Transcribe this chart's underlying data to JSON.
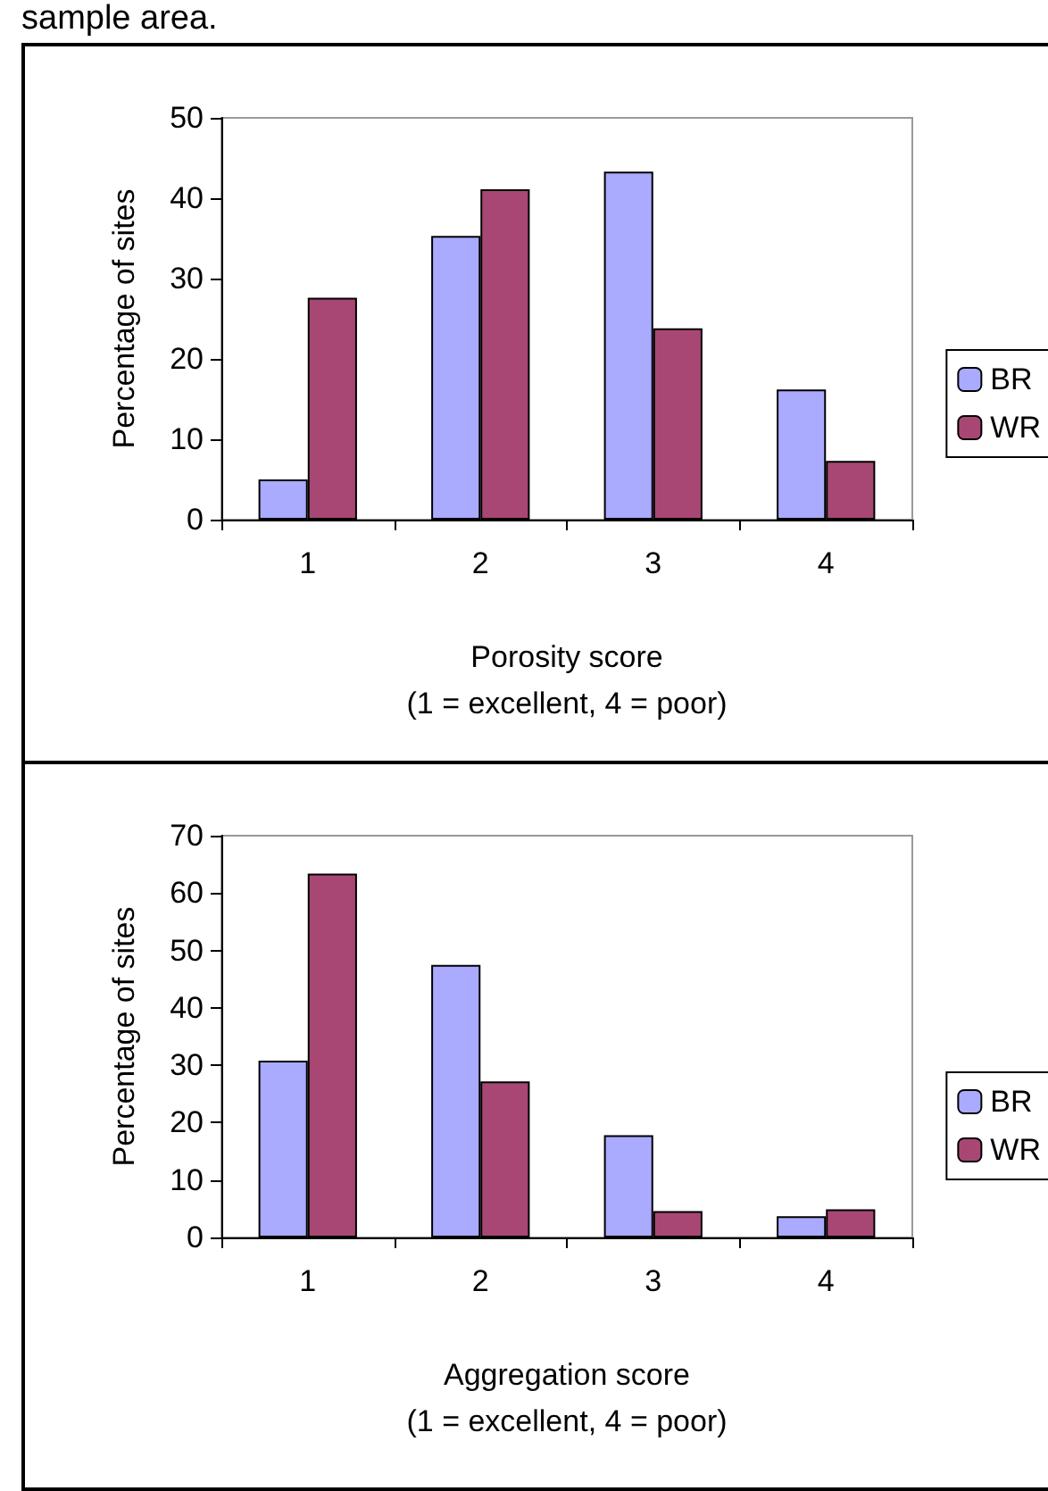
{
  "chart_data": [
    {
      "type": "bar",
      "annotations": [
        "sample area."
      ],
      "categories": [
        "1",
        "2",
        "3",
        "4"
      ],
      "xlabel": "Porosity score\n(1 = excellent, 4 = poor)",
      "ylabel": "Percentage of sites",
      "ylim": [
        0,
        50
      ],
      "yticks": [
        0,
        10,
        20,
        30,
        40,
        50
      ],
      "legend": "right",
      "grid": false,
      "series": [
        {
          "name": "BR",
          "color": "#aaaaff",
          "values": [
            5.0,
            35.3,
            43.3,
            16.2
          ]
        },
        {
          "name": "WR",
          "color": "#a94774",
          "values": [
            27.6,
            41.1,
            23.8,
            7.3
          ]
        }
      ]
    },
    {
      "type": "bar",
      "categories": [
        "1",
        "2",
        "3",
        "4"
      ],
      "xlabel": "Aggregation score\n(1 = excellent, 4 = poor)",
      "ylabel": "Percentage of sites",
      "ylim": [
        0,
        70
      ],
      "yticks": [
        0,
        10,
        20,
        30,
        40,
        50,
        60,
        70
      ],
      "legend": "right",
      "grid": false,
      "series": [
        {
          "name": "BR",
          "color": "#aaaaff",
          "values": [
            30.8,
            47.5,
            17.8,
            3.7
          ]
        },
        {
          "name": "WR",
          "color": "#a94774",
          "values": [
            63.4,
            27.2,
            4.6,
            4.9
          ]
        }
      ]
    }
  ]
}
